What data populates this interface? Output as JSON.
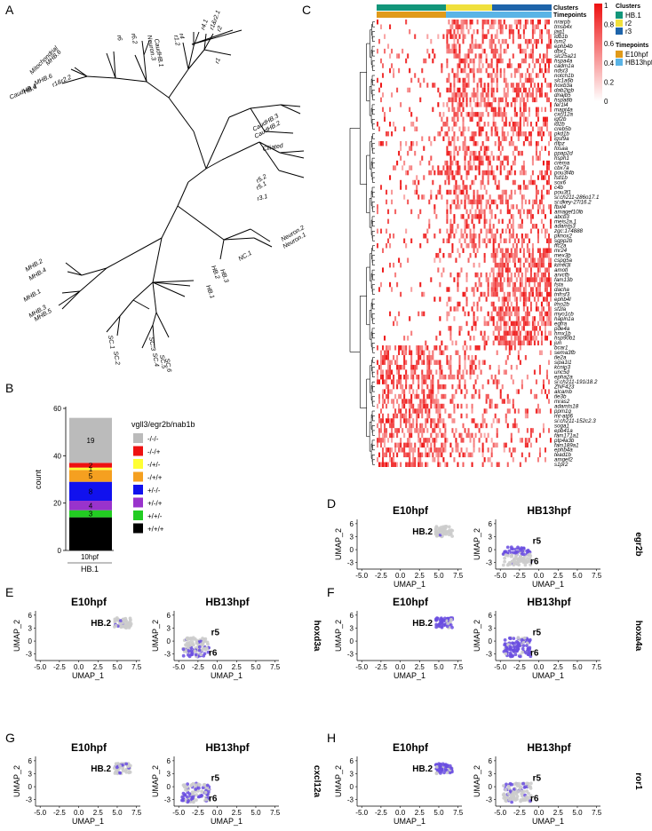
{
  "panel_labels": {
    "a": "A",
    "b": "B",
    "c": "C",
    "d": "D",
    "e": "E",
    "f": "F",
    "g": "G",
    "h": "H"
  },
  "tree_tips": [
    "MHB.6",
    "Mitochondrial",
    "MHB.6",
    "HB.4",
    "CaudHB.4",
    "r1&r2.2",
    "r6",
    "r6.2",
    "Neuron.3",
    "CaudHB.1",
    "r1.2",
    "r4",
    "r4.1",
    "r1&r2.1",
    "r2",
    "r1",
    "CaudHB.3",
    "CaudHB.2",
    "Ciliated",
    "r5.2",
    "r5.1",
    "r3.1",
    "Neuron.2",
    "Neuron.1",
    "NC.1",
    "MHB.2",
    "MHB.4",
    "MHB.1",
    "MHB.3",
    "MHB.5",
    "SC.1",
    "SC.2",
    "SC.3",
    "HB.2",
    "HB.3",
    "HB.1",
    "SC.4",
    "SC.5",
    "SC.6"
  ],
  "heatmap": {
    "legend_values": [
      "1",
      "0.8",
      "0.6",
      "0.4",
      "0.2",
      "0"
    ],
    "clusters_title": "Clusters",
    "timepoints_title": "Timepoints",
    "cluster_legend": [
      {
        "label": "HB.1",
        "color": "#12967a"
      },
      {
        "label": "r2",
        "color": "#f0e03c"
      },
      {
        "label": "r3",
        "color": "#1e64aa"
      }
    ],
    "timepoint_legend": [
      {
        "label": "E10hpf",
        "color": "#e09a1a"
      },
      {
        "label": "HB13hpf",
        "color": "#5ab4e6"
      }
    ],
    "genes": [
      "nrarpb",
      "tmsb4x",
      "jag1",
      "ldb1b",
      "lsm2",
      "ephb4b",
      "dbx1",
      "slc25a21",
      "hspa4a",
      "cadm1a",
      "ndst3",
      "notch1b",
      "slc1a6b",
      "hoxb3a",
      "dab2ipb",
      "dnajb5",
      "hspa8b",
      "fer1l4",
      "mapt4a",
      "cxcl12a",
      "igf2b",
      "id2b",
      "creb5b",
      "pkd1b",
      "lgsf9a",
      "nfpz",
      "fosaa",
      "ppap2d",
      "hsph1",
      "crema",
      "cbx7a",
      "pou3f4b",
      "fstl1b",
      "sox6",
      "c4b",
      "pou3f1",
      "si:ch211-286o17.1",
      "si:dkey-27i16.2",
      "fbxl4",
      "amagef10lb",
      "abcb3",
      "meis2a.1",
      "adamts3",
      "zgc:174888",
      "pknox2",
      "sgpp2b",
      "ffc2a",
      "mr24",
      "mex3b",
      "cspg5a",
      "kirrel3l",
      "amotl",
      "arvcfb",
      "fam13b",
      "fsta",
      "dacha",
      "tnfrsf3",
      "ephb4l",
      "lmo2b",
      "sf2la",
      "myo1cb",
      "hapln1a",
      "egfra",
      "pde4a",
      "hmx1b",
      "hsp90b1",
      "jun",
      "bcar1",
      "sema3fb",
      "tle2a",
      "sipa1l1",
      "kcnip3",
      "unc5d",
      "epha2a",
      "si:ch211-191i18.2",
      "ZNF423",
      "alcamb",
      "tle3b",
      "mras2",
      "adamts18",
      "ppm1g",
      "mt-atp6",
      "si:ch211-152c2.3",
      "soga1",
      "epb41a",
      "fam171a1",
      "ptp4a3b",
      "fam189a1",
      "ephb4a",
      "tead1b",
      "amgef2",
      "s1pr2"
    ]
  },
  "bar_chart": {
    "chart_data": {
      "type": "bar",
      "categories": [
        "10hpf"
      ],
      "group_label": "HB.1",
      "ylabel": "count",
      "ylim": [
        0,
        60
      ],
      "yticks": [
        0,
        20,
        40,
        60
      ],
      "legend_title": "vgll3/egr2b/nab1b",
      "series": [
        {
          "name": "+/+/+",
          "value": 14,
          "color": "#000000"
        },
        {
          "name": "+/+/-",
          "value": 3,
          "color": "#22cc22"
        },
        {
          "name": "+/-/+",
          "value": 4,
          "color": "#9933cc"
        },
        {
          "name": "+/-/-",
          "value": 8,
          "color": "#1111ee"
        },
        {
          "name": "-/+/+",
          "value": 5,
          "color": "#f5a020"
        },
        {
          "name": "-/+/-",
          "value": 1,
          "color": "#ffff33"
        },
        {
          "name": "-/-/+",
          "value": 2,
          "color": "#ee1111"
        },
        {
          "name": "-/-/-",
          "value": 19,
          "color": "#bbbbbb"
        }
      ]
    }
  },
  "umap": {
    "e10": "E10hpf",
    "hb13": "HB13hpf",
    "xlabel": "UMAP_1",
    "ylabel": "UMAP_2",
    "xticks": [
      "-5.0",
      "-2.5",
      "0.0",
      "2.5",
      "5.0",
      "7.5"
    ],
    "yticks": [
      "6",
      "3",
      "0",
      "-3"
    ],
    "hb2": "HB.2",
    "r5": "r5",
    "r6": "r6",
    "genes": {
      "d": "egr2b",
      "e": "hoxd3a",
      "f": "hoxa4a",
      "g": "cxcl12a",
      "h": "ror1"
    }
  }
}
